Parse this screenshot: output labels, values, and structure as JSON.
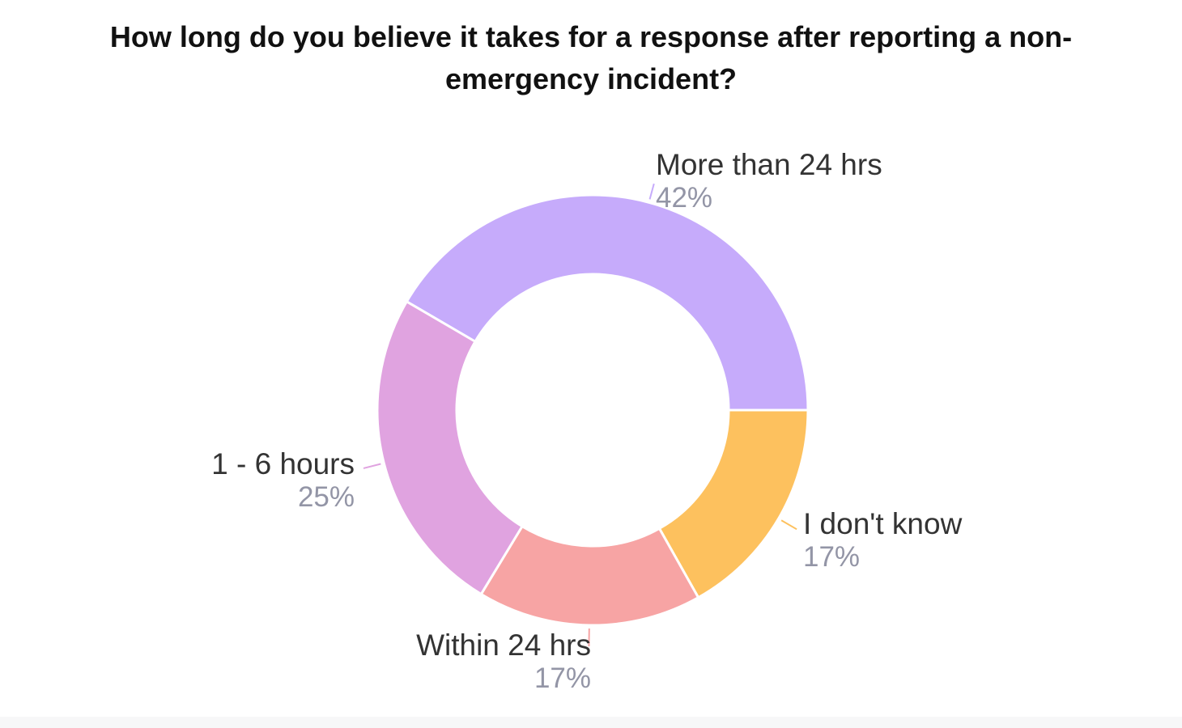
{
  "chart_data": {
    "type": "pie",
    "title_lines": [
      "How long do you believe it takes for a response after reporting a non-",
      "emergency incident?"
    ],
    "slices": [
      {
        "label": "More than 24 hrs",
        "value": 42,
        "value_label": "42%",
        "color": "#c6abfb"
      },
      {
        "label": "I don't know",
        "value": 17,
        "value_label": "17%",
        "color": "#fdc15e"
      },
      {
        "label": "Within 24 hrs",
        "value": 17,
        "value_label": "17%",
        "color": "#f7a4a4"
      },
      {
        "label": "1 - 6 hours",
        "value": 25,
        "value_label": "25%",
        "color": "#e0a3e0"
      }
    ],
    "donut": true,
    "legend": "none"
  }
}
